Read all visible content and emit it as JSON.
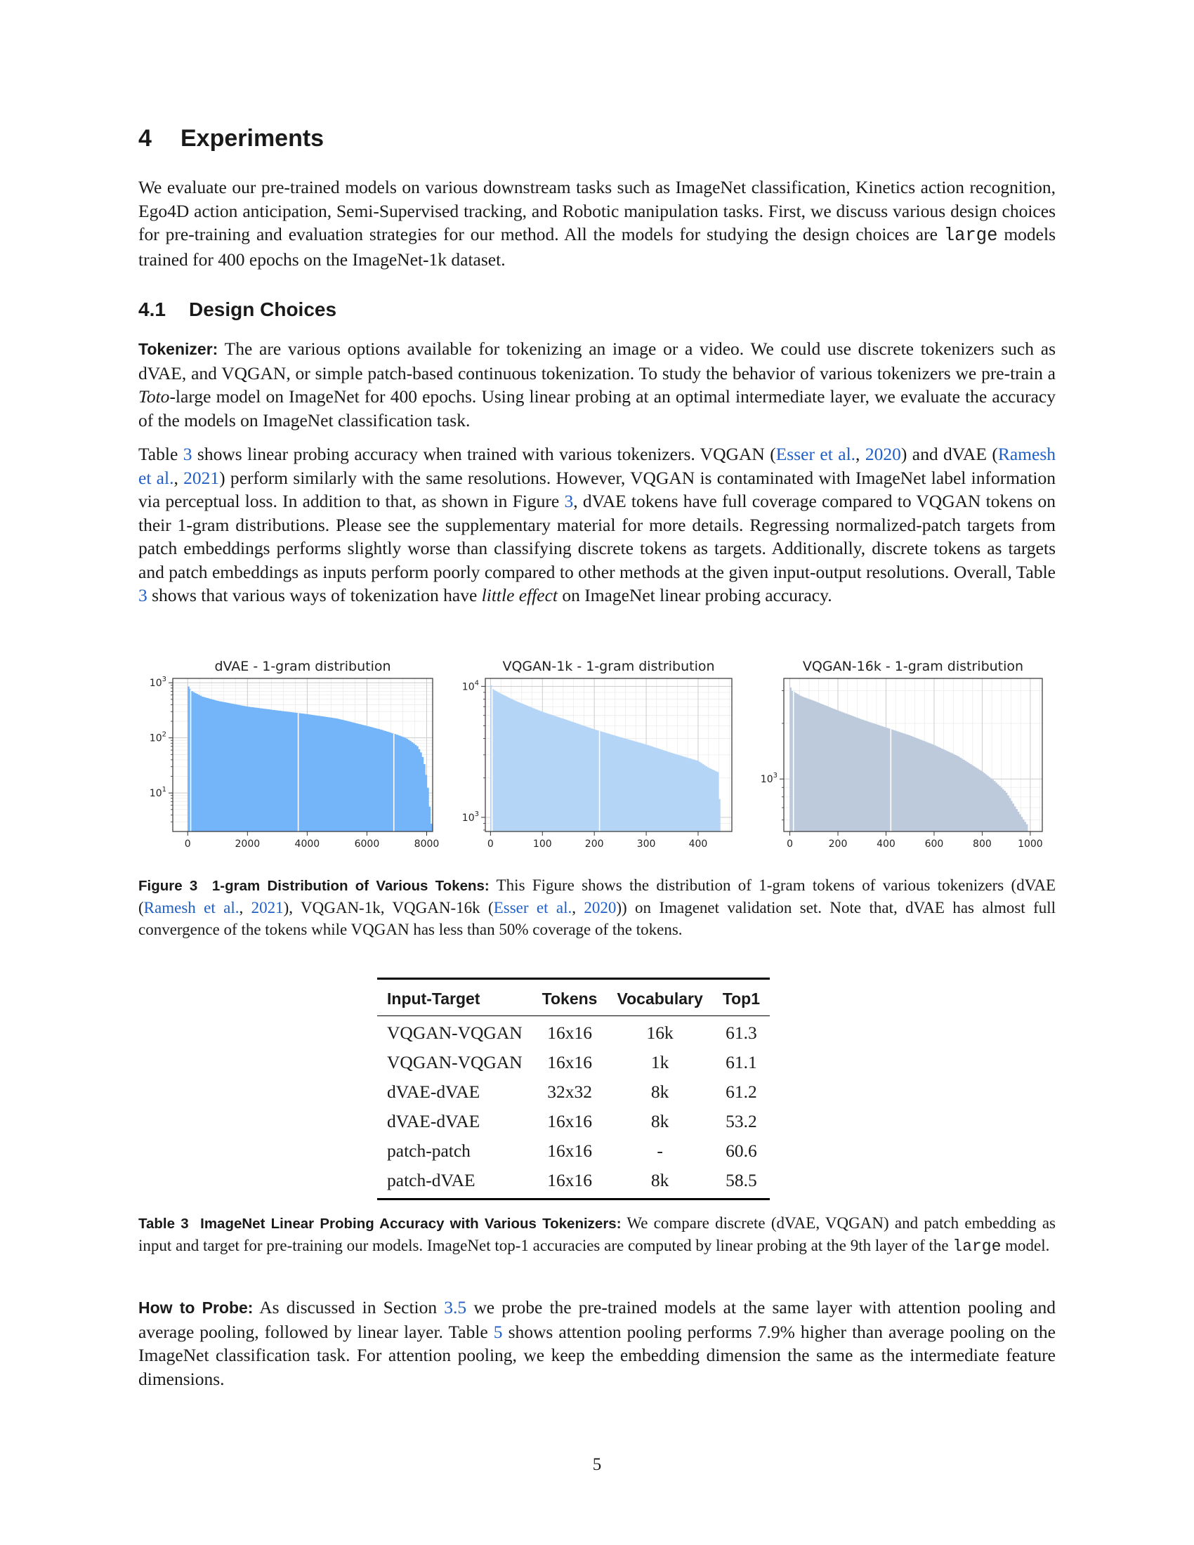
{
  "section": {
    "number": "4",
    "title": "Experiments"
  },
  "intro": {
    "before_code": "We evaluate our pre-trained models on various downstream tasks such as ImageNet classification, Kinetics action recognition, Ego4D action anticipation, Semi-Supervised tracking, and Robotic manipulation tasks. First, we discuss various design choices for pre-training and evaluation strategies for our method. All the models for studying the design choices are ",
    "code": "large",
    "after_code": " models trained for 400 epochs on the ImageNet-1k dataset."
  },
  "subsection": {
    "number": "4.1",
    "title": "Design Choices"
  },
  "tokenizer_para": {
    "lead": "Tokenizer:",
    "t1": " The are various options available for tokenizing an image or a video. We could use discrete tokenizers such as dVAE, and VQGAN, or simple patch-based continuous tokenization. To study the behavior of various tokenizers we pre-train a ",
    "italic": "Toto",
    "t2": "-large model on ImageNet for 400 epochs. Using linear probing at an optimal intermediate layer, we evaluate the accuracy of the models on ImageNet classification task."
  },
  "table3_para": {
    "s1": "Table ",
    "ref_table": "3",
    "s2": " shows linear probing accuracy when trained with various tokenizers. VQGAN (",
    "cite_esser": "Esser et al.",
    "comma1": ", ",
    "year_esser": "2020",
    "s3": ") and dVAE (",
    "cite_ramesh": "Ramesh et al.",
    "comma2": ", ",
    "year_ramesh": "2021",
    "s4": ") perform similarly with the same resolutions. However, VQGAN is contaminated with ImageNet label information via perceptual loss. In addition to that, as shown in Figure ",
    "ref_fig": "3",
    "s5": ", dVAE tokens have full coverage compared to VQGAN tokens on their 1-gram distributions. Please see the supplementary material for more details. Regressing normalized-patch targets from patch embeddings performs slightly worse than classifying discrete tokens as targets. Additionally, discrete tokens as targets and patch embeddings as inputs perform poorly compared to other methods at the given input-output resolutions. Overall, Table ",
    "ref_table2": "3",
    "s6": " shows that various ways of tokenization have ",
    "italic": "little effect",
    "s7": " on ImageNet linear probing accuracy."
  },
  "chart_data": [
    {
      "type": "bar",
      "title": "dVAE - 1-gram distribution",
      "color": "#74b4f8",
      "x_ticks": [
        "0",
        "2000",
        "4000",
        "6000",
        "8000"
      ],
      "xlim": [
        -500,
        8200
      ],
      "y_scale": "log",
      "y_ticks": [
        {
          "exp": "1",
          "v": 10
        },
        {
          "exp": "2",
          "v": 100
        },
        {
          "exp": "3",
          "v": 1000
        }
      ],
      "ylim": [
        2,
        1200
      ],
      "grid": true,
      "bins": 8192,
      "curve_x": [
        0,
        150,
        500,
        1000,
        2000,
        3000,
        4000,
        5000,
        6000,
        6500,
        7000,
        7300,
        7500,
        7700,
        7850,
        7950,
        8050,
        8100,
        8150,
        8192
      ],
      "curve_y": [
        900,
        700,
        560,
        470,
        370,
        315,
        270,
        225,
        165,
        140,
        115,
        100,
        85,
        70,
        50,
        30,
        12,
        6,
        3,
        2.3
      ],
      "gaps_x": [
        100,
        3700,
        6900
      ]
    },
    {
      "type": "bar",
      "title": "VQGAN-1k - 1-gram distribution",
      "color": "#b5d5f6",
      "x_ticks": [
        "0",
        "100",
        "200",
        "300",
        "400"
      ],
      "xlim": [
        -10,
        465
      ],
      "y_scale": "log",
      "y_ticks": [
        {
          "exp": "3",
          "v": 1000
        },
        {
          "exp": "4",
          "v": 10000
        }
      ],
      "ylim": [
        780,
        11500
      ],
      "grid": true,
      "bins": 443,
      "curve_x": [
        0,
        5,
        20,
        50,
        100,
        150,
        200,
        250,
        300,
        350,
        400,
        420,
        440,
        443
      ],
      "curve_y": [
        10500,
        9500,
        8800,
        7700,
        6400,
        5500,
        4700,
        4100,
        3600,
        3100,
        2700,
        2400,
        2200,
        820
      ],
      "gaps_x": [
        3,
        210
      ]
    },
    {
      "type": "bar",
      "title": "VQGAN-16k - 1-gram distribution",
      "color": "#bccadb",
      "x_ticks": [
        "0",
        "200",
        "400",
        "600",
        "800",
        "1000"
      ],
      "xlim": [
        -25,
        1050
      ],
      "y_scale": "log",
      "y_ticks": [
        {
          "exp": "3",
          "v": 1000
        }
      ],
      "ylim": [
        520,
        3500
      ],
      "grid": true,
      "bins": 990,
      "curve_x": [
        0,
        10,
        50,
        100,
        200,
        300,
        400,
        500,
        600,
        700,
        800,
        850,
        900,
        940,
        970,
        990
      ],
      "curve_y": [
        3200,
        3000,
        2800,
        2650,
        2350,
        2100,
        1900,
        1720,
        1530,
        1330,
        1100,
        980,
        850,
        700,
        610,
        560
      ],
      "gaps_x": [
        15,
        420
      ]
    }
  ],
  "fig3_caption": {
    "label": "Figure 3",
    "bold_title": "1-gram Distribution of Various Tokens:",
    "t1": " This Figure shows the distribution of 1-gram tokens of various tokenizers (dVAE (",
    "cite_ramesh": "Ramesh et al.",
    "comma1": ", ",
    "year_ramesh": "2021",
    "t2": "), VQGAN-1k, VQGAN-16k (",
    "cite_esser": "Esser et al.",
    "comma2": ", ",
    "year_esser": "2020",
    "t3": ")) on Imagenet validation set. Note that, dVAE has almost full convergence of the tokens while VQGAN has less than 50% coverage of the tokens."
  },
  "table3": {
    "headers": [
      "Input-Target",
      "Tokens",
      "Vocabulary",
      "Top1"
    ],
    "rows": [
      [
        "VQGAN-VQGAN",
        "16x16",
        "16k",
        "61.3"
      ],
      [
        "VQGAN-VQGAN",
        "16x16",
        "1k",
        "61.1"
      ],
      [
        "dVAE-dVAE",
        "32x32",
        "8k",
        "61.2"
      ],
      [
        "dVAE-dVAE",
        "16x16",
        "8k",
        "53.2"
      ],
      [
        "patch-patch",
        "16x16",
        "-",
        "60.6"
      ],
      [
        "patch-dVAE",
        "16x16",
        "8k",
        "58.5"
      ]
    ]
  },
  "table3_caption": {
    "label": "Table 3",
    "bold_title": "ImageNet Linear Probing Accuracy with Various Tokenizers:",
    "t1": " We compare discrete (dVAE, VQGAN) and patch embedding as input and target for pre-training our models. ImageNet top-1 accuracies are computed by linear probing at the 9th layer of the ",
    "code": "large",
    "t2": " model."
  },
  "probe_para": {
    "lead": "How to Probe:",
    "t1": " As discussed in Section ",
    "ref_section": "3.5",
    "t2": " we probe the pre-trained models at the same layer with attention pooling and average pooling, followed by linear layer. Table ",
    "ref_table": "5",
    "t3": " shows attention pooling performs 7.9% higher than average pooling on the ImageNet classification task. For attention pooling, we keep the embedding dimension the same as the intermediate feature dimensions."
  },
  "page_number": "5"
}
